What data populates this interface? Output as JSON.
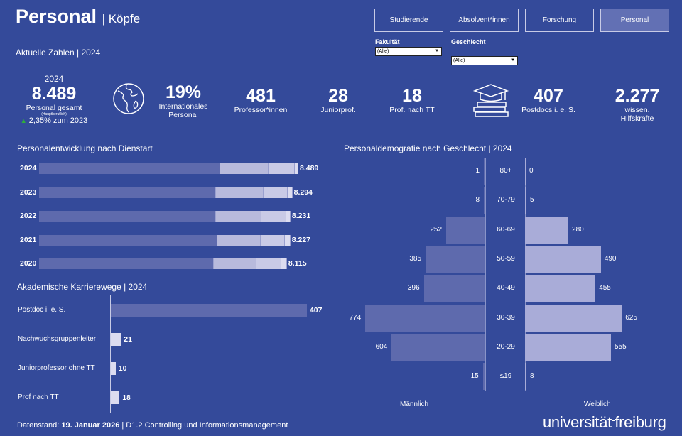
{
  "header": {
    "title": "Personal",
    "subtitle": "| Köpfe",
    "section": "Aktuelle Zahlen | 2024"
  },
  "nav": [
    {
      "label": "Studierende",
      "active": false
    },
    {
      "label": "Absolvent*innen",
      "active": false
    },
    {
      "label": "Forschung",
      "active": false
    },
    {
      "label": "Personal",
      "active": true
    }
  ],
  "filters": [
    {
      "label": "Fakultät",
      "value": "(Alle)"
    },
    {
      "label": "Geschlecht",
      "value": "(Alle)"
    }
  ],
  "kpis": {
    "total": {
      "year": "2024",
      "value": "8.489",
      "label": "Personal gesamt",
      "note": "(Hauptberuflich)",
      "change": "2,35% zum 2023",
      "change_color": "#2eae3a"
    },
    "items": [
      {
        "value": "19%",
        "label": "Internationales Personal",
        "icon": "globe-icon"
      },
      {
        "value": "481",
        "label": "Professor*innen"
      },
      {
        "value": "28",
        "label": "Juniorprof."
      },
      {
        "value": "18",
        "label": "Prof. nach TT"
      },
      {
        "value": "407",
        "label": "Postdocs i. e. S.",
        "icon": "graduation-cap-books-icon"
      },
      {
        "value": "2.277",
        "label": "wissen. Hilfskräfte"
      }
    ]
  },
  "chart_data": [
    {
      "type": "bar",
      "orientation": "horizontal",
      "stacked": true,
      "title": "Personalentwicklung nach Dienstart",
      "categories": [
        "2024",
        "2023",
        "2022",
        "2021",
        "2020"
      ],
      "totals": [
        "8.489",
        "8.294",
        "8.231",
        "8.227",
        "8.115"
      ],
      "segments": [
        [
          5931,
          1582,
          860,
          116
        ],
        [
          5791,
          1558,
          791,
          154
        ],
        [
          5791,
          1489,
          814,
          137
        ],
        [
          5838,
          1419,
          791,
          179
        ],
        [
          5722,
          1396,
          814,
          183
        ]
      ],
      "colors": [
        "#5e6aad",
        "#b8badc",
        "#c9cae6",
        "#dcdcf0"
      ]
    },
    {
      "type": "bar",
      "orientation": "horizontal",
      "title": "Akademische Karrierewege | 2024",
      "categories": [
        "Postdoc i. e. S.",
        "Nachwuchsgruppenleiter",
        "Juniorprofessor ohne TT",
        "Prof nach TT"
      ],
      "values": [
        407,
        21,
        10,
        18
      ],
      "colors": [
        "#5e6aad",
        "#dcdcf0"
      ]
    },
    {
      "type": "bar",
      "subtype": "population-pyramid",
      "title": "Personaldemografie nach Geschlecht  | 2024",
      "categories": [
        "80+",
        "70-79",
        "60-69",
        "50-59",
        "40-49",
        "30-39",
        "20-29",
        "≤19"
      ],
      "series": [
        {
          "name": "Männlich",
          "values": [
            1,
            8,
            252,
            385,
            396,
            774,
            604,
            15
          ],
          "color": "#5e6aad"
        },
        {
          "name": "Weiblich",
          "values": [
            0,
            5,
            280,
            490,
            455,
            625,
            555,
            8
          ],
          "color": "#a9acd8"
        }
      ]
    }
  ],
  "footer": {
    "prefix": "Datenstand: ",
    "date": "19. Januar 2026",
    "suffix": " | D1.2 Controlling und Informationsmanagement",
    "logo": "universität freiburg"
  }
}
